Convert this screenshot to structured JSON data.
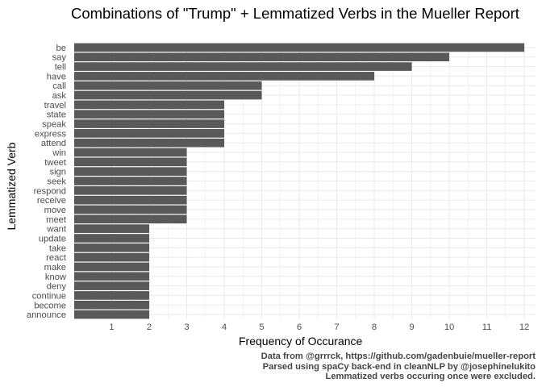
{
  "chart_data": {
    "type": "bar",
    "orientation": "horizontal",
    "title": "Combinations of \"Trump\" + Lemmatized Verbs in the Mueller Report",
    "xlabel": "Frequency of Occurance",
    "ylabel": "Lemmatized Verb",
    "categories": [
      "be",
      "say",
      "tell",
      "have",
      "call",
      "ask",
      "travel",
      "state",
      "speak",
      "express",
      "attend",
      "win",
      "tweet",
      "sign",
      "seek",
      "respond",
      "receive",
      "move",
      "meet",
      "want",
      "update",
      "take",
      "react",
      "make",
      "know",
      "deny",
      "continue",
      "become",
      "announce"
    ],
    "values": [
      12,
      10,
      9,
      8,
      5,
      5,
      4,
      4,
      4,
      4,
      4,
      3,
      3,
      3,
      3,
      3,
      3,
      3,
      3,
      2,
      2,
      2,
      2,
      2,
      2,
      2,
      2,
      2,
      2
    ],
    "xlim": [
      0,
      12.3
    ],
    "x_ticks": [
      1,
      2,
      3,
      4,
      5,
      6,
      7,
      8,
      9,
      10,
      11,
      12
    ],
    "grid": true,
    "bar_color": "#595959",
    "caption": [
      "Data from @grrrck, https://github.com/gadenbuie/mueller-report",
      "Parsed using spaCy back-end in cleanNLP by @josephinelukito",
      "Lemmatized verbs occuring once were excluded."
    ]
  }
}
